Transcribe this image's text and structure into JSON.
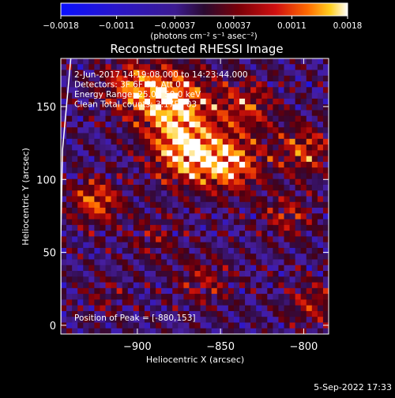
{
  "chart_data": {
    "type": "heatmap",
    "title": "Reconstructed RHESSI Image",
    "xlabel": "Heliocentric X (arcsec)",
    "ylabel": "Heliocentric Y (arcsec)",
    "xlim": [
      -946,
      -785
    ],
    "ylim": [
      -6,
      183
    ],
    "xticks": [
      -900,
      -850,
      -800
    ],
    "xtick_labels": [
      "−900",
      "−850",
      "−800"
    ],
    "yticks": [
      0,
      50,
      100,
      150
    ],
    "ytick_labels": [
      "0",
      "50",
      "100",
      "150"
    ],
    "colorbar": {
      "range": [
        -0.0018,
        0.0018
      ],
      "ticks": [
        -0.0018,
        -0.0011,
        -0.00037,
        0.00037,
        0.0011,
        0.0018
      ],
      "tick_labels": [
        "−0.0018",
        "−0.0011",
        "−0.00037",
        "0.00037",
        "0.0011",
        "0.0018"
      ],
      "unit_label": "(photons cm⁻² s⁻¹ asec⁻²)"
    },
    "annotations": [
      "2-Jun-2017 14:19:08.000 to 14:23:44.000",
      "Detectors: 3F 6F 8F, Att 0",
      "Energy Range: 25.0 - 50.0 keV",
      "Clean    Total counts: 3.17E+03"
    ],
    "peak_label": "Position of Peak = [-880,153]",
    "peak": [
      -880,
      153
    ],
    "timestamp": "5-Sep-2022 17:33",
    "limb_points": [
      [
        -940,
        183
      ],
      [
        -945,
        120
      ],
      [
        -946,
        60
      ],
      [
        -946,
        0
      ]
    ]
  }
}
